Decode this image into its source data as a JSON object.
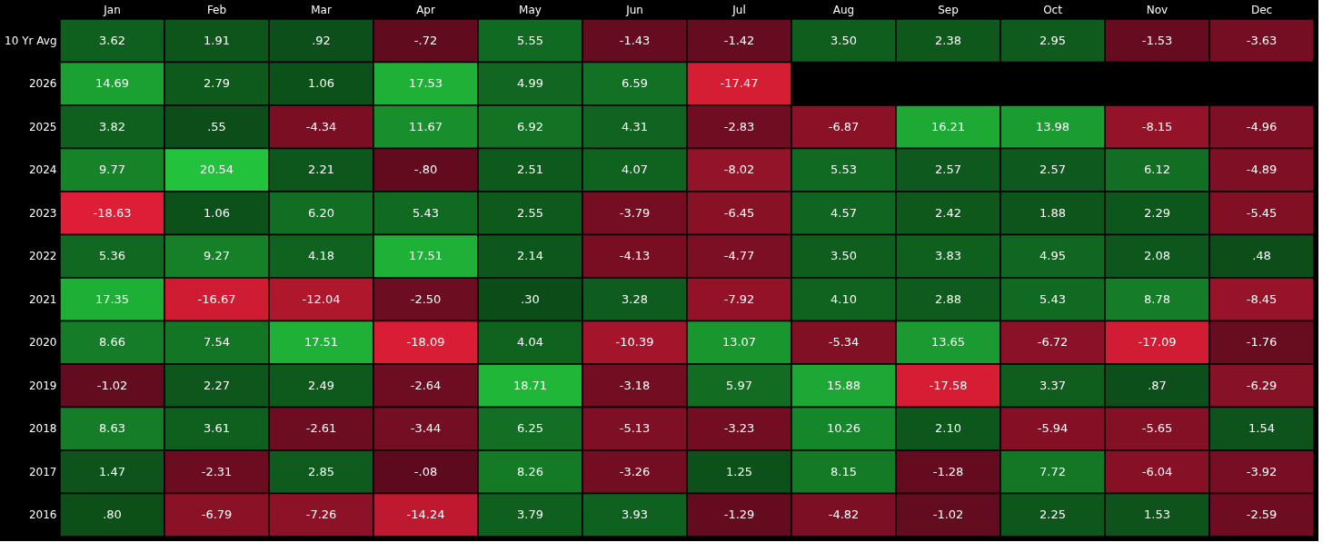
{
  "chart_data": {
    "type": "heatmap",
    "categories": [
      "Jan",
      "Feb",
      "Mar",
      "Apr",
      "May",
      "Jun",
      "Jul",
      "Aug",
      "Sep",
      "Oct",
      "Nov",
      "Dec"
    ],
    "y_categories": [
      "10 Yr Avg",
      "2026",
      "2025",
      "2024",
      "2023",
      "2022",
      "2021",
      "2020",
      "2019",
      "2018",
      "2017",
      "2016"
    ],
    "cells": [
      [
        3.62,
        1.91,
        0.92,
        -0.72,
        5.55,
        -1.43,
        -1.42,
        3.5,
        2.38,
        2.95,
        -1.53,
        -3.63
      ],
      [
        14.69,
        2.79,
        1.06,
        17.53,
        4.99,
        6.59,
        -17.47,
        null,
        null,
        null,
        null,
        null
      ],
      [
        3.82,
        0.55,
        -4.34,
        11.67,
        6.92,
        4.31,
        -2.83,
        -6.87,
        16.21,
        13.98,
        -8.15,
        -4.96
      ],
      [
        9.77,
        20.54,
        2.21,
        -0.8,
        2.51,
        4.07,
        -8.02,
        5.53,
        2.57,
        2.57,
        6.12,
        -4.89
      ],
      [
        -18.63,
        1.06,
        6.2,
        5.43,
        2.55,
        -3.79,
        -6.45,
        4.57,
        2.42,
        1.88,
        2.29,
        -5.45
      ],
      [
        5.36,
        9.27,
        4.18,
        17.51,
        2.14,
        -4.13,
        -4.77,
        3.5,
        3.83,
        4.95,
        2.08,
        0.48
      ],
      [
        17.35,
        -16.67,
        -12.04,
        -2.5,
        0.3,
        3.28,
        -7.92,
        4.1,
        2.88,
        5.43,
        8.78,
        -8.45
      ],
      [
        8.66,
        7.54,
        17.51,
        -18.09,
        4.04,
        -10.39,
        13.07,
        -5.34,
        13.65,
        -6.72,
        -17.09,
        -1.76
      ],
      [
        -1.02,
        2.27,
        2.49,
        -2.64,
        18.71,
        -3.18,
        5.97,
        15.88,
        -17.58,
        3.37,
        0.87,
        -6.29
      ],
      [
        8.63,
        3.61,
        -2.61,
        -3.44,
        6.25,
        -5.13,
        -3.23,
        10.26,
        2.1,
        -5.94,
        -5.65,
        1.54
      ],
      [
        1.47,
        -2.31,
        2.85,
        -0.08,
        8.26,
        -3.26,
        1.25,
        8.15,
        -1.28,
        7.72,
        -6.04,
        -3.92
      ],
      [
        0.8,
        -6.79,
        -7.26,
        -14.24,
        3.79,
        3.93,
        -1.29,
        -4.82,
        -1.02,
        2.25,
        1.53,
        -2.59
      ]
    ],
    "cell_labels": [
      [
        "3.62",
        "1.91",
        ".92",
        "-.72",
        "5.55",
        "-1.43",
        "-1.42",
        "3.50",
        "2.38",
        "2.95",
        "-1.53",
        "-3.63"
      ],
      [
        "14.69",
        "2.79",
        "1.06",
        "17.53",
        "4.99",
        "6.59",
        "-17.47",
        null,
        null,
        null,
        null,
        null
      ],
      [
        "3.82",
        ".55",
        "-4.34",
        "11.67",
        "6.92",
        "4.31",
        "-2.83",
        "-6.87",
        "16.21",
        "13.98",
        "-8.15",
        "-4.96"
      ],
      [
        "9.77",
        "20.54",
        "2.21",
        "-.80",
        "2.51",
        "4.07",
        "-8.02",
        "5.53",
        "2.57",
        "2.57",
        "6.12",
        "-4.89"
      ],
      [
        "-18.63",
        "1.06",
        "6.20",
        "5.43",
        "2.55",
        "-3.79",
        "-6.45",
        "4.57",
        "2.42",
        "1.88",
        "2.29",
        "-5.45"
      ],
      [
        "5.36",
        "9.27",
        "4.18",
        "17.51",
        "2.14",
        "-4.13",
        "-4.77",
        "3.50",
        "3.83",
        "4.95",
        "2.08",
        ".48"
      ],
      [
        "17.35",
        "-16.67",
        "-12.04",
        "-2.50",
        ".30",
        "3.28",
        "-7.92",
        "4.10",
        "2.88",
        "5.43",
        "8.78",
        "-8.45"
      ],
      [
        "8.66",
        "7.54",
        "17.51",
        "-18.09",
        "4.04",
        "-10.39",
        "13.07",
        "-5.34",
        "13.65",
        "-6.72",
        "-17.09",
        "-1.76"
      ],
      [
        "-1.02",
        "2.27",
        "2.49",
        "-2.64",
        "18.71",
        "-3.18",
        "5.97",
        "15.88",
        "-17.58",
        "3.37",
        ".87",
        "-6.29"
      ],
      [
        "8.63",
        "3.61",
        "-2.61",
        "-3.44",
        "6.25",
        "-5.13",
        "-3.23",
        "10.26",
        "2.10",
        "-5.94",
        "-5.65",
        "1.54"
      ],
      [
        "1.47",
        "-2.31",
        "2.85",
        "-.08",
        "8.26",
        "-3.26",
        "1.25",
        "8.15",
        "-1.28",
        "7.72",
        "-6.04",
        "-3.92"
      ],
      [
        ".80",
        "-6.79",
        "-7.26",
        "-14.24",
        "3.79",
        "3.93",
        "-1.29",
        "-4.82",
        "-1.02",
        "2.25",
        "1.53",
        "-2.59"
      ]
    ]
  }
}
